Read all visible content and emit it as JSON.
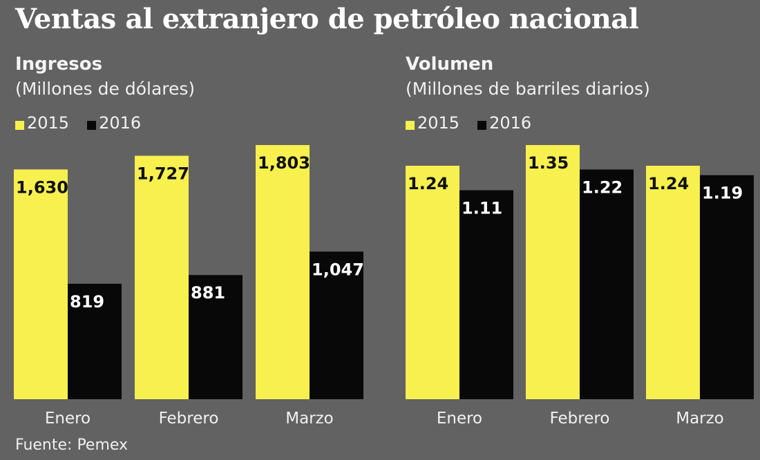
{
  "title": "Ventas al extranjero de petróleo nacional",
  "source": "Fuente: Pemex",
  "colors": {
    "background": "#626262",
    "2015": "#f7f04e",
    "2016": "#080808"
  },
  "chart_data": [
    {
      "type": "bar",
      "title": "Ingresos",
      "subtitle": "(Millones de dólares)",
      "categories": [
        "Enero",
        "Febrero",
        "Marzo"
      ],
      "series": [
        {
          "name": "2015",
          "values": [
            1630,
            1727,
            1803
          ],
          "labels": [
            "1,630",
            "1,727",
            "1,803"
          ]
        },
        {
          "name": "2016",
          "values": [
            819,
            881,
            1047
          ],
          "labels": [
            "819",
            "881",
            "1,047"
          ]
        }
      ],
      "ylim": [
        0,
        1803
      ],
      "grid": false,
      "legend": "top-left"
    },
    {
      "type": "bar",
      "title": "Volumen",
      "subtitle": "(Millones de barriles diarios)",
      "categories": [
        "Enero",
        "Febrero",
        "Marzo"
      ],
      "series": [
        {
          "name": "2015",
          "values": [
            1.24,
            1.35,
            1.24
          ],
          "labels": [
            "1.24",
            "1.35",
            "1.24"
          ]
        },
        {
          "name": "2016",
          "values": [
            1.11,
            1.22,
            1.19
          ],
          "labels": [
            "1.11",
            "1.22",
            "1.19"
          ]
        }
      ],
      "ylim": [
        0,
        1.35
      ],
      "grid": false,
      "legend": "top-left"
    }
  ]
}
